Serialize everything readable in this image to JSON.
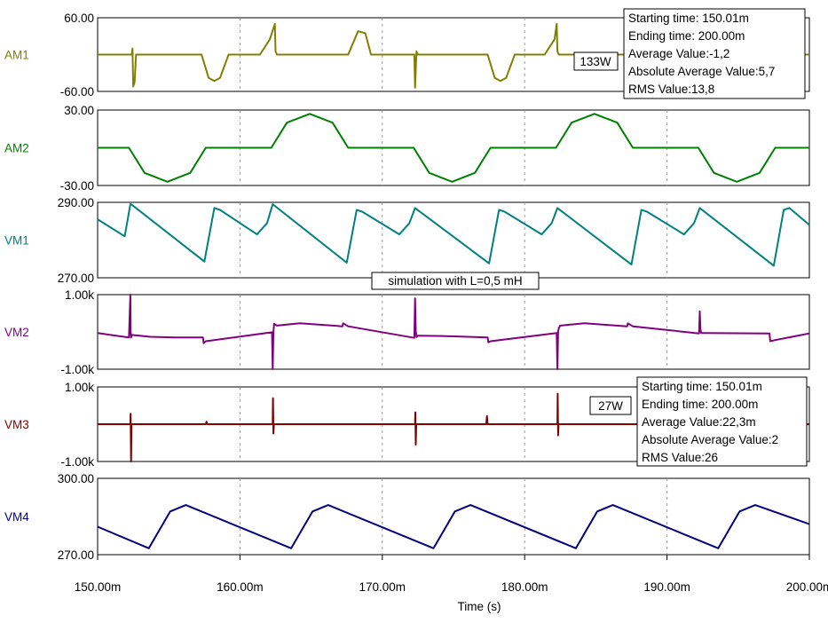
{
  "chart_data": {
    "type": "line",
    "x_unit": "s",
    "xlim": [
      0.15,
      0.2
    ],
    "xticks": [
      {
        "value": 0.15,
        "label": "150.00m"
      },
      {
        "value": 0.16,
        "label": "160.00m"
      },
      {
        "value": 0.17,
        "label": "170.00m"
      },
      {
        "value": 0.18,
        "label": "180.00m"
      },
      {
        "value": 0.19,
        "label": "190.00m"
      },
      {
        "value": 0.2,
        "label": "200.00m"
      }
    ],
    "xlabel": "Time (s)",
    "grid": true,
    "panels": [
      {
        "name": "AM1",
        "color": "#808000",
        "ylim": [
          -60,
          60
        ],
        "ytick_top": "60.00",
        "ytick_bottom": "-60.00",
        "x": [
          0.15,
          0.1524,
          0.15245,
          0.1525,
          0.1526,
          0.1527,
          0.1573,
          0.1578,
          0.1582,
          0.1586,
          0.1592,
          0.1614,
          0.1621,
          0.16245,
          0.1625,
          0.1626,
          0.1676,
          0.1683,
          0.1688,
          0.1692,
          0.17225,
          0.1723,
          0.1724,
          0.1725,
          0.1774,
          0.1779,
          0.1783,
          0.1787,
          0.1793,
          0.1814,
          0.1821,
          0.18225,
          0.1823,
          0.1824,
          0.18395,
          0.2
        ],
        "y": [
          0,
          0,
          10,
          -52,
          -45,
          0,
          0,
          -38,
          -43,
          -38,
          0,
          0,
          25,
          50,
          5,
          0,
          0,
          38,
          35,
          0,
          0,
          -54,
          5,
          0,
          0,
          -38,
          -43,
          -38,
          0,
          0,
          25,
          50,
          5,
          0,
          0,
          0
        ]
      },
      {
        "name": "AM2",
        "color": "#008000",
        "ylim": [
          -30,
          30
        ],
        "ytick_top": "30.00",
        "ytick_bottom": "-30.00",
        "x": [
          0.15,
          0.1522,
          0.1533,
          0.1549,
          0.1565,
          0.1576,
          0.1622,
          0.1633,
          0.1649,
          0.1665,
          0.1676,
          0.1722,
          0.1733,
          0.1749,
          0.1765,
          0.1776,
          0.1822,
          0.1833,
          0.1849,
          0.1865,
          0.1876,
          0.1922,
          0.1933,
          0.1949,
          0.1965,
          0.1976,
          0.2
        ],
        "y": [
          0,
          0,
          -20,
          -27,
          -20,
          0,
          0,
          20,
          27,
          20,
          0,
          0,
          -20,
          -27,
          -20,
          0,
          0,
          20,
          27,
          20,
          0,
          0,
          -20,
          -27,
          -20,
          0,
          0
        ]
      },
      {
        "name": "VM1",
        "color": "#008080",
        "ylim": [
          270,
          290
        ],
        "ytick_top": "290.00",
        "ytick_bottom": "270.00",
        "x": [
          0.15,
          0.1519,
          0.1523,
          0.15235,
          0.1575,
          0.1582,
          0.1586,
          0.1612,
          0.1619,
          0.1623,
          0.1675,
          0.1682,
          0.1686,
          0.1712,
          0.1719,
          0.1723,
          0.1775,
          0.1782,
          0.1786,
          0.1812,
          0.1819,
          0.1823,
          0.1875,
          0.1882,
          0.1886,
          0.1912,
          0.1919,
          0.1923,
          0.1975,
          0.1982,
          0.1986,
          0.2
        ],
        "y": [
          285.5,
          281.0,
          289.5,
          289.5,
          274.3,
          288.5,
          288.0,
          281.5,
          284.5,
          289.5,
          274.0,
          288.0,
          287.5,
          281.5,
          284.5,
          288.5,
          273.8,
          288.0,
          287.5,
          281.5,
          284.5,
          288.5,
          273.5,
          288.0,
          287.5,
          281.5,
          284.5,
          288.5,
          273.2,
          288.0,
          288.5,
          284.0
        ]
      },
      {
        "name": "VM2",
        "color": "#800080",
        "ylim": [
          -1000,
          1000
        ],
        "ytick_top": "1.00k",
        "ytick_bottom": "-1.00k",
        "x": [
          0.15,
          0.1522,
          0.1523,
          0.15232,
          0.15235,
          0.1524,
          0.1537,
          0.1554,
          0.1574,
          0.15745,
          0.1576,
          0.16225,
          0.1623,
          0.16235,
          0.1624,
          0.1626,
          0.1642,
          0.1672,
          0.16725,
          0.1676,
          0.17225,
          0.1723,
          0.17235,
          0.1724,
          0.1725,
          0.1742,
          0.1774,
          0.17745,
          0.1776,
          0.18225,
          0.1823,
          0.18235,
          0.1824,
          0.1825,
          0.1842,
          0.1872,
          0.18725,
          0.1876,
          0.19225,
          0.1923,
          0.19235,
          0.1924,
          0.1925,
          0.1972,
          0.19725,
          0.1976,
          0.2
        ],
        "y": [
          -30,
          -150,
          1000,
          10,
          -150,
          -80,
          -130,
          -150,
          -150,
          -300,
          -250,
          -10,
          -1000,
          0,
          220,
          170,
          230,
          150,
          230,
          150,
          -160,
          900,
          30,
          -140,
          -100,
          -110,
          -150,
          -280,
          -250,
          -30,
          -1000,
          0,
          110,
          170,
          230,
          150,
          230,
          150,
          -40,
          550,
          60,
          -30,
          -30,
          -40,
          -250,
          -220,
          -40
        ]
      },
      {
        "name": "VM3",
        "color": "#800000",
        "ylim": [
          -1000,
          1000
        ],
        "ytick_top": "1.00k",
        "ytick_bottom": "-1.00k",
        "x": [
          0.15,
          0.1523,
          0.15232,
          0.15235,
          0.15238,
          0.1524,
          0.1576,
          0.15765,
          0.1577,
          0.1623,
          0.16232,
          0.16235,
          0.16238,
          0.1624,
          0.1723,
          0.17232,
          0.17235,
          0.17238,
          0.1724,
          0.1773,
          0.17735,
          0.1774,
          0.1823,
          0.18232,
          0.18235,
          0.18238,
          0.1824,
          0.2
        ],
        "y": [
          0,
          0,
          280,
          -1000,
          0,
          0,
          0,
          70,
          0,
          0,
          700,
          -250,
          0,
          0,
          0,
          320,
          -550,
          0,
          0,
          0,
          220,
          0,
          0,
          820,
          -300,
          0,
          0,
          0
        ]
      },
      {
        "name": "VM4",
        "color": "#000080",
        "ylim": [
          270,
          300
        ],
        "ytick_top": "300.00",
        "ytick_bottom": "270.00",
        "x": [
          0.15,
          0.1536,
          0.1551,
          0.1562,
          0.1636,
          0.1651,
          0.1662,
          0.1736,
          0.1751,
          0.1762,
          0.1836,
          0.1851,
          0.1862,
          0.1936,
          0.1951,
          0.1962,
          0.2
        ],
        "y": [
          281,
          272.5,
          287,
          289.5,
          272.5,
          287,
          289.5,
          272.5,
          287,
          289.5,
          272.5,
          287,
          289.5,
          272.5,
          287,
          289.5,
          282
        ]
      }
    ]
  },
  "annotations": {
    "label_133w": "133W",
    "label_27w": "27W",
    "sim_label": "simulation with L=0,5 mH",
    "box1": {
      "start": "Starting time: 150.01m",
      "end": "Ending time: 200.00m",
      "avg": "Average Value:-1,2",
      "absavg": "Absolute Average Value:5,7",
      "rms": "RMS Value:13,8"
    },
    "box2": {
      "start": "Starting time: 150.01m",
      "end": "Ending time: 200.00m",
      "avg": "Average Value:22,3m",
      "absavg": "Absolute Average Value:2",
      "rms": "RMS Value:26"
    }
  }
}
